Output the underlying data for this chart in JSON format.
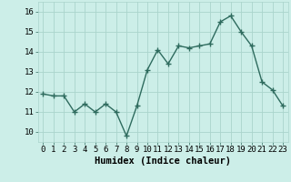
{
  "x": [
    0,
    1,
    2,
    3,
    4,
    5,
    6,
    7,
    8,
    9,
    10,
    11,
    12,
    13,
    14,
    15,
    16,
    17,
    18,
    19,
    20,
    21,
    22,
    23
  ],
  "y": [
    11.9,
    11.8,
    11.8,
    11.0,
    11.4,
    11.0,
    11.4,
    11.0,
    9.8,
    11.3,
    13.1,
    14.1,
    13.4,
    14.3,
    14.2,
    14.3,
    14.4,
    15.5,
    15.8,
    15.0,
    14.3,
    12.5,
    12.1,
    11.3
  ],
  "line_color": "#2e6b5e",
  "marker": "+",
  "marker_size": 4,
  "bg_color": "#cceee8",
  "grid_color": "#aad4cc",
  "xlabel": "Humidex (Indice chaleur)",
  "xlabel_fontsize": 7.5,
  "xlim": [
    -0.5,
    23.5
  ],
  "ylim": [
    9.5,
    16.5
  ],
  "yticks": [
    10,
    11,
    12,
    13,
    14,
    15,
    16
  ],
  "xticks": [
    0,
    1,
    2,
    3,
    4,
    5,
    6,
    7,
    8,
    9,
    10,
    11,
    12,
    13,
    14,
    15,
    16,
    17,
    18,
    19,
    20,
    21,
    22,
    23
  ],
  "tick_fontsize": 6.5,
  "line_width": 1.0
}
